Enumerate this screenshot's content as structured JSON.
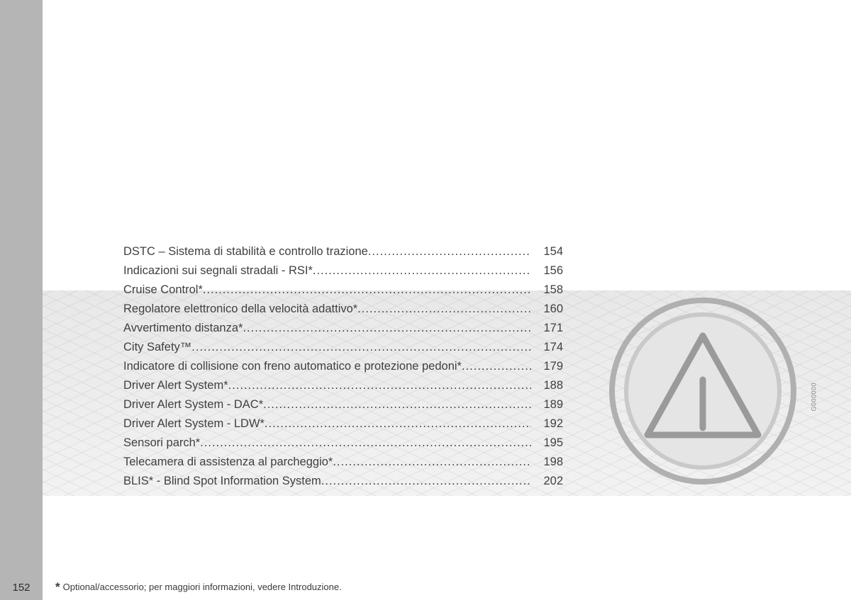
{
  "page": {
    "number": "152",
    "footnote_star": "*",
    "footnote_text": "Optional/accessorio; per maggiori informazioni, vedere Introduzione.",
    "image_code": "G000000"
  },
  "colors": {
    "left_tab": "#b5b5b5",
    "band_top": "#e8e8e8",
    "text": "#404040",
    "icon_outer_ring": "#b0b0b0",
    "icon_inner_ring": "#c9c9c9",
    "icon_fill": "#e5e5e5",
    "icon_triangle": "#9a9a9a"
  },
  "toc": [
    {
      "title": "DSTC – Sistema di stabilità e controllo trazione",
      "page": "154"
    },
    {
      "title": "Indicazioni sui segnali stradali - RSI*",
      "page": "156"
    },
    {
      "title": "Cruise Control*",
      "page": "158"
    },
    {
      "title": "Regolatore elettronico della velocità adattivo*",
      "page": "160"
    },
    {
      "title": "Avvertimento distanza*",
      "page": "171"
    },
    {
      "title": "City Safety™",
      "page": "174"
    },
    {
      "title": "Indicatore di collisione con freno automatico e protezione pedoni*",
      "page": "179"
    },
    {
      "title": "Driver Alert System*",
      "page": "188"
    },
    {
      "title": "Driver Alert System - DAC*",
      "page": "189"
    },
    {
      "title": "Driver Alert System - LDW*",
      "page": "192"
    },
    {
      "title": "Sensori parch*",
      "page": "195"
    },
    {
      "title": "Telecamera di assistenza al parcheggio*",
      "page": "198"
    },
    {
      "title": "BLIS* - Blind Spot Information System",
      "page": "202"
    }
  ]
}
